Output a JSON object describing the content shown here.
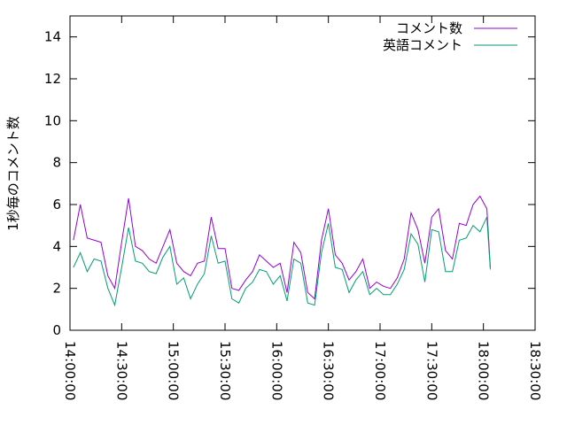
{
  "chart_data": {
    "type": "line",
    "y_label": "1秒毎のコメント数",
    "x": [
      "14:02:00",
      "14:06:00",
      "14:10:00",
      "14:14:00",
      "14:18:00",
      "14:22:00",
      "14:26:00",
      "14:30:00",
      "14:34:00",
      "14:38:00",
      "14:42:00",
      "14:46:00",
      "14:50:00",
      "14:54:00",
      "14:58:00",
      "15:02:00",
      "15:06:00",
      "15:10:00",
      "15:14:00",
      "15:18:00",
      "15:22:00",
      "15:26:00",
      "15:30:00",
      "15:34:00",
      "15:38:00",
      "15:42:00",
      "15:46:00",
      "15:50:00",
      "15:54:00",
      "15:58:00",
      "16:02:00",
      "16:06:00",
      "16:10:00",
      "16:14:00",
      "16:18:00",
      "16:22:00",
      "16:26:00",
      "16:30:00",
      "16:34:00",
      "16:38:00",
      "16:42:00",
      "16:46:00",
      "16:50:00",
      "16:54:00",
      "16:58:00",
      "17:02:00",
      "17:06:00",
      "17:10:00",
      "17:14:00",
      "17:18:00",
      "17:22:00",
      "17:26:00",
      "17:30:00",
      "17:34:00",
      "17:38:00",
      "17:42:00",
      "17:46:00",
      "17:50:00",
      "17:54:00",
      "17:58:00",
      "18:02:00",
      "18:04:00"
    ],
    "series": [
      {
        "name": "コメント数",
        "color": "#9400d3",
        "values": [
          4.3,
          6.0,
          4.4,
          4.3,
          4.2,
          2.6,
          2.0,
          4.2,
          6.3,
          4.0,
          3.8,
          3.4,
          3.2,
          4.0,
          4.8,
          3.2,
          2.8,
          2.6,
          3.2,
          3.3,
          5.4,
          3.9,
          3.9,
          2.0,
          1.9,
          2.4,
          2.8,
          3.6,
          3.3,
          3.0,
          3.2,
          1.8,
          4.2,
          3.7,
          1.8,
          1.5,
          4.3,
          5.8,
          3.6,
          3.2,
          2.4,
          2.8,
          3.4,
          2.0,
          2.3,
          2.1,
          2.0,
          2.5,
          3.4,
          5.6,
          4.8,
          3.2,
          5.4,
          5.8,
          3.8,
          3.4,
          5.1,
          5.0,
          6.0,
          6.4,
          5.8,
          3.0
        ]
      },
      {
        "name": "英語コメント",
        "color": "#009e73",
        "values": [
          3.0,
          3.7,
          2.8,
          3.4,
          3.3,
          2.0,
          1.2,
          3.0,
          4.9,
          3.3,
          3.2,
          2.8,
          2.7,
          3.5,
          4.0,
          2.2,
          2.5,
          1.5,
          2.2,
          2.7,
          4.5,
          3.2,
          3.3,
          1.5,
          1.3,
          2.0,
          2.3,
          2.9,
          2.8,
          2.2,
          2.6,
          1.4,
          3.4,
          3.2,
          1.3,
          1.2,
          3.7,
          5.1,
          3.0,
          2.9,
          1.8,
          2.4,
          2.8,
          1.7,
          2.0,
          1.7,
          1.7,
          2.2,
          2.9,
          4.6,
          4.1,
          2.3,
          4.8,
          4.7,
          2.8,
          2.8,
          4.3,
          4.4,
          5.0,
          4.7,
          5.4,
          2.9
        ]
      }
    ],
    "xlim": [
      "14:00:00",
      "18:30:00"
    ],
    "xticks": [
      "14:00:00",
      "14:30:00",
      "15:00:00",
      "15:30:00",
      "16:00:00",
      "16:30:00",
      "17:00:00",
      "17:30:00",
      "18:00:00",
      "18:30:00"
    ],
    "ylim": [
      0,
      15
    ],
    "yticks": [
      0,
      2,
      4,
      6,
      8,
      10,
      12,
      14
    ],
    "legend": "top-right"
  }
}
